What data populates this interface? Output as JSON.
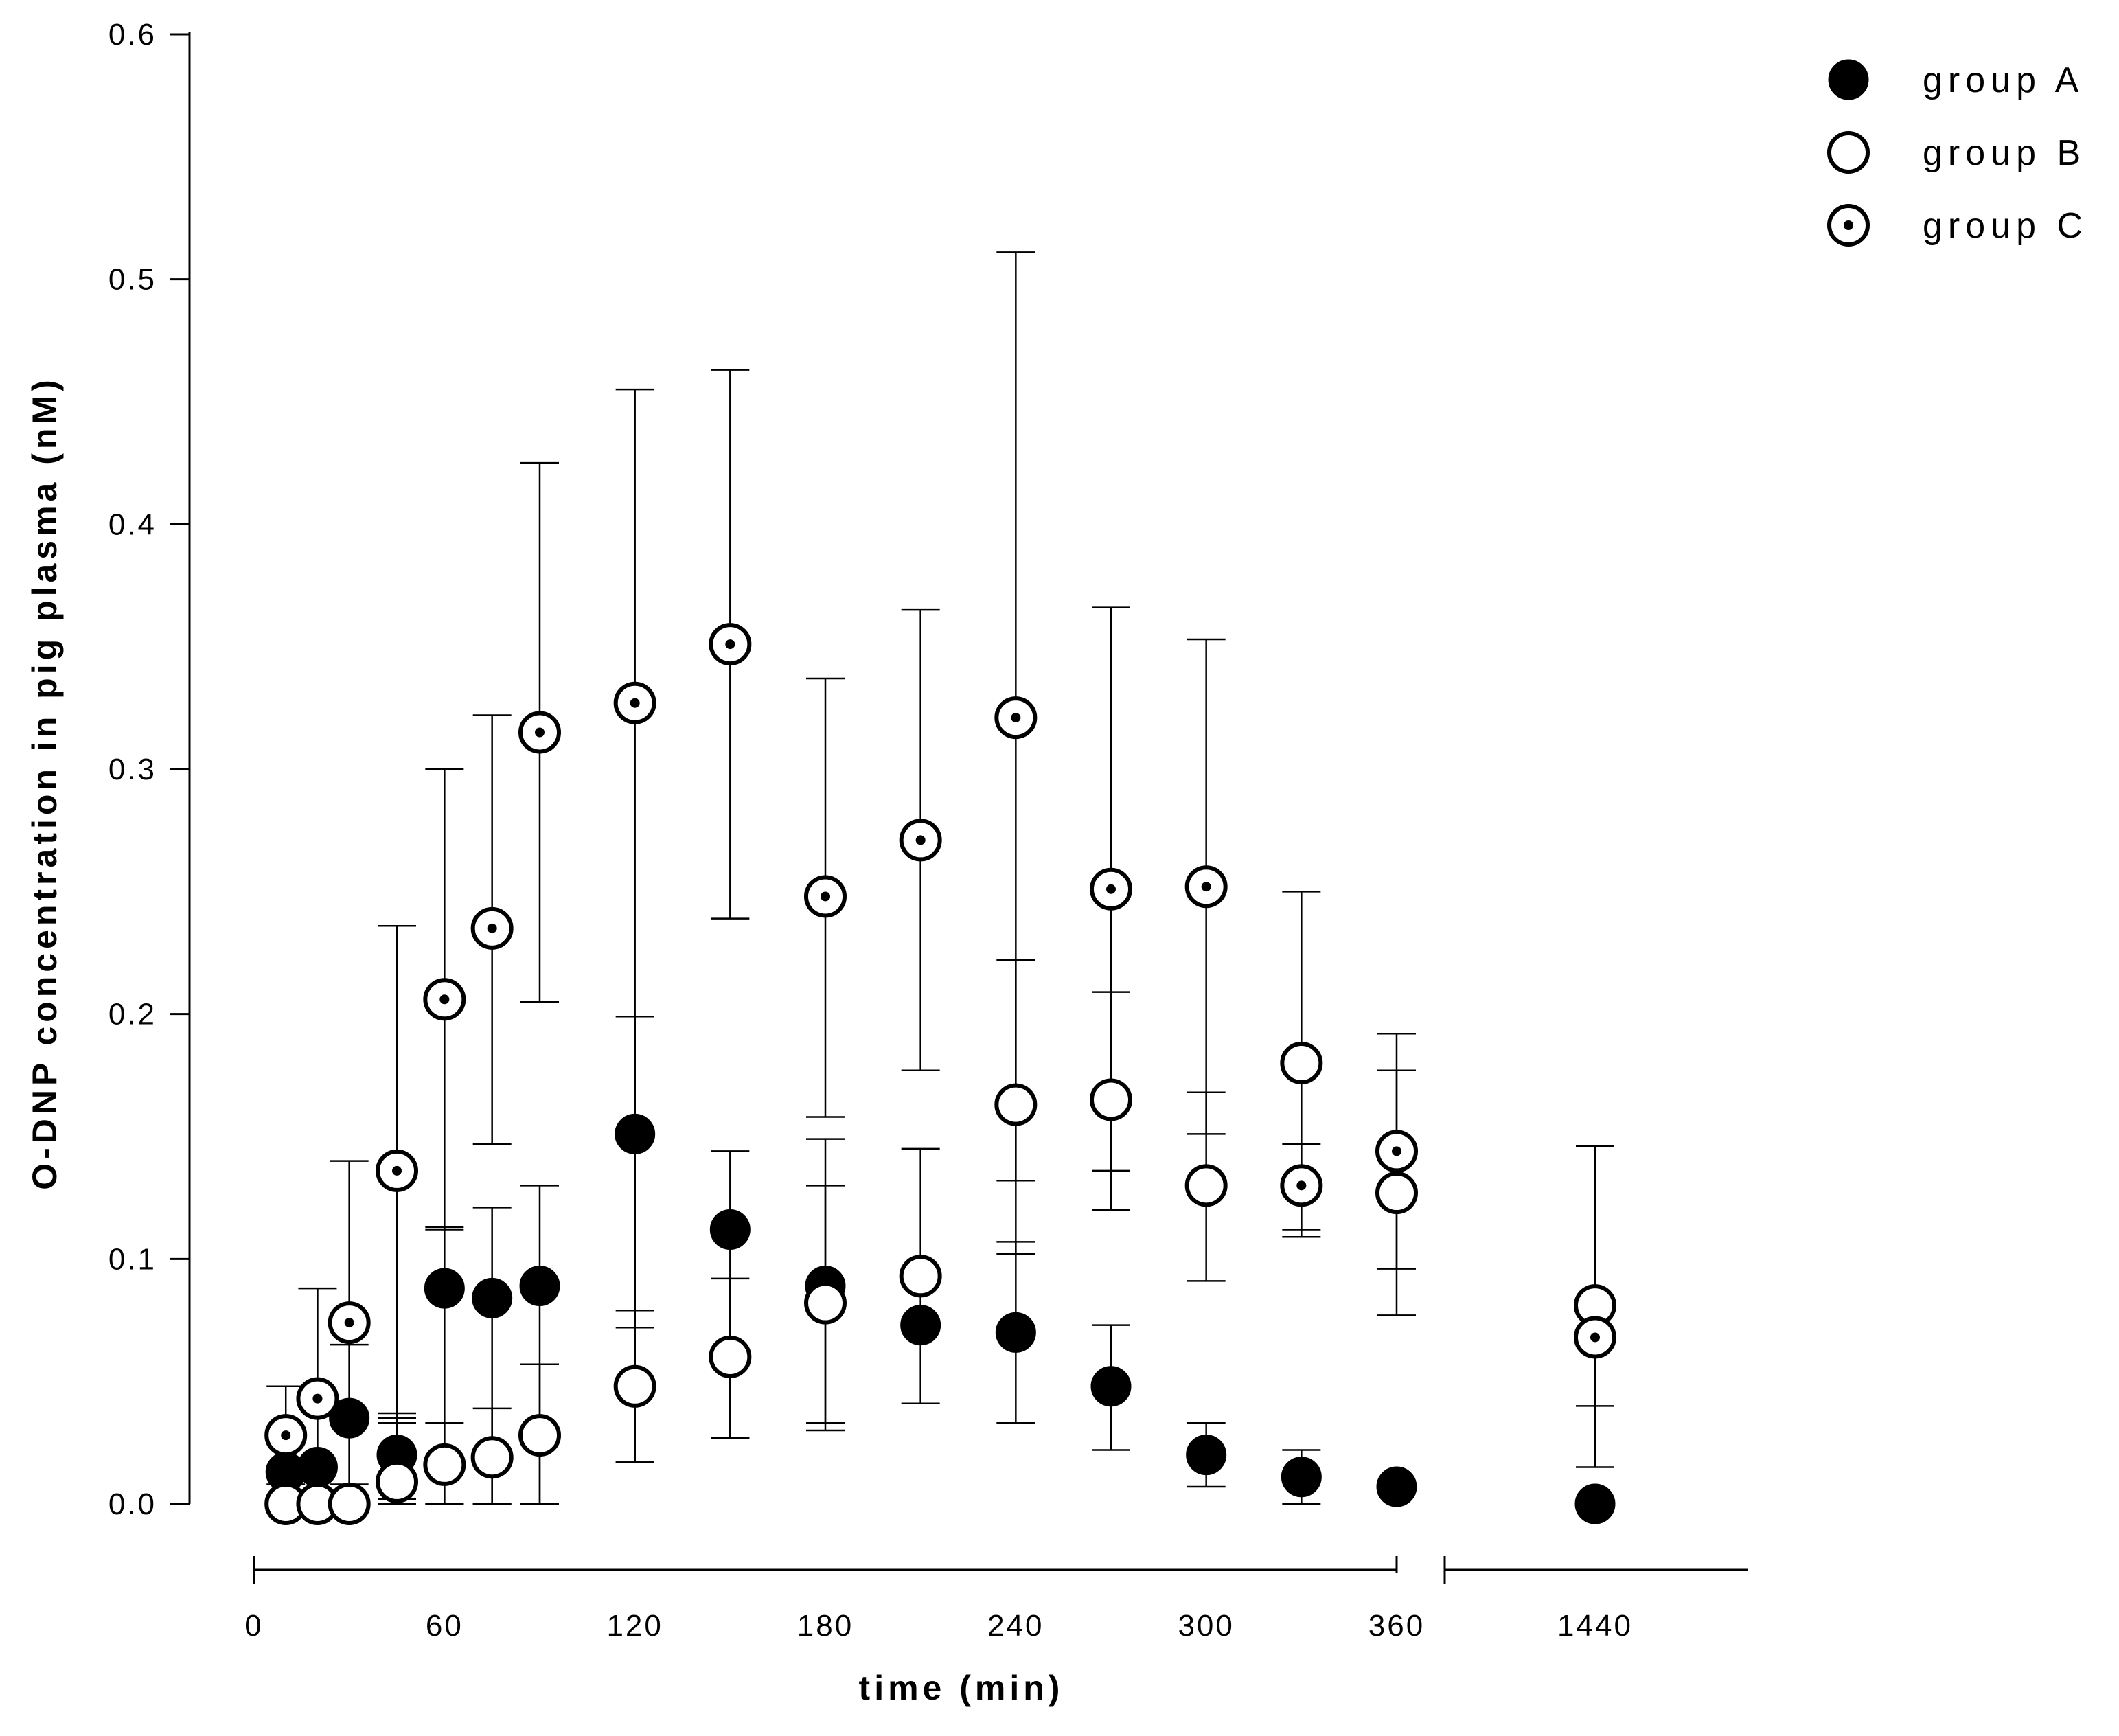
{
  "chart_data": {
    "type": "scatter",
    "title": "",
    "xlabel": "time (min)",
    "ylabel": "O-DNP concentration in pig plasma (nM)",
    "ylim": [
      0,
      0.6
    ],
    "yticks": [
      0.0,
      0.1,
      0.2,
      0.3,
      0.4,
      0.5,
      0.6
    ],
    "ytick_labels": [
      "0.0",
      "0.1",
      "0.2",
      "0.3",
      "0.4",
      "0.5",
      "0.6"
    ],
    "xlim_main": [
      0,
      360
    ],
    "xticks_main": [
      0,
      60,
      120,
      180,
      240,
      300,
      360
    ],
    "xtick_labels_main": [
      "0",
      "60",
      "120",
      "180",
      "240",
      "300",
      "360"
    ],
    "x_break_tick": 1440,
    "x_break_tick_label": "1440",
    "legend_position": "top-right",
    "series": [
      {
        "name": "group A",
        "marker": "filled-circle",
        "x": [
          10,
          20,
          30,
          45,
          60,
          75,
          90,
          120,
          150,
          180,
          210,
          240,
          270,
          300,
          330,
          360,
          1440
        ],
        "y": [
          0.013,
          0.015,
          0.035,
          0.02,
          0.088,
          0.084,
          0.089,
          0.151,
          0.112,
          0.089,
          0.073,
          0.07,
          0.048,
          0.02,
          0.011,
          0.007,
          0.0
        ],
        "err_low": [
          null,
          null,
          0.0,
          0.0,
          0.0,
          0.0,
          0.0,
          0.017,
          0.027,
          0.03,
          null,
          0.033,
          0.022,
          0.007,
          0.0,
          null,
          null
        ],
        "err_high": [
          null,
          null,
          0.065,
          0.037,
          0.113,
          0.121,
          0.13,
          0.199,
          0.144,
          0.149,
          null,
          0.107,
          0.073,
          0.033,
          0.022,
          null,
          null
        ]
      },
      {
        "name": "group B",
        "marker": "open-circle",
        "x": [
          10,
          20,
          30,
          45,
          60,
          75,
          90,
          120,
          150,
          180,
          210,
          240,
          270,
          300,
          330,
          360,
          1440
        ],
        "y": [
          0.0,
          0.0,
          0.0,
          0.009,
          0.016,
          0.019,
          0.028,
          0.048,
          0.06,
          0.082,
          0.093,
          0.163,
          0.165,
          0.13,
          0.18,
          0.127,
          0.081
        ],
        "err_low": [
          null,
          null,
          null,
          0.002,
          0.0,
          0.0,
          0.0,
          0.017,
          0.027,
          0.033,
          0.041,
          0.102,
          0.12,
          0.091,
          0.112,
          0.077,
          0.015
        ],
        "err_high": [
          null,
          null,
          null,
          0.035,
          0.033,
          0.039,
          0.057,
          0.079,
          0.092,
          0.13,
          0.145,
          0.222,
          0.209,
          0.168,
          0.25,
          0.177,
          0.146
        ]
      },
      {
        "name": "group C",
        "marker": "dotted-circle",
        "x": [
          10,
          20,
          30,
          45,
          60,
          75,
          90,
          120,
          150,
          180,
          210,
          240,
          270,
          300,
          330,
          360,
          1440
        ],
        "y": [
          0.028,
          0.043,
          0.074,
          0.136,
          0.206,
          0.235,
          0.315,
          0.327,
          0.351,
          0.248,
          0.271,
          0.321,
          0.251,
          0.252,
          0.13,
          0.144,
          0.068
        ],
        "err_low": [
          0.008,
          0.0,
          0.008,
          0.033,
          0.112,
          0.147,
          0.205,
          0.072,
          0.239,
          0.158,
          0.177,
          0.132,
          0.136,
          0.151,
          0.109,
          0.096,
          0.04
        ],
        "err_high": [
          0.048,
          0.088,
          0.14,
          0.236,
          0.3,
          0.322,
          0.425,
          0.455,
          0.463,
          0.337,
          0.365,
          0.511,
          0.366,
          0.353,
          0.147,
          0.192,
          0.146
        ]
      }
    ]
  }
}
